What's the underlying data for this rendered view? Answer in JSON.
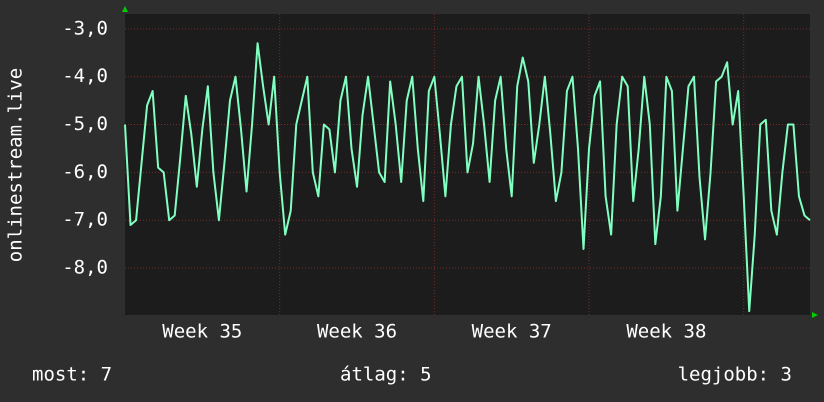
{
  "chart_data": {
    "type": "line",
    "ylabel": "onlinestream.live",
    "x": [
      0,
      0.25,
      0.5,
      0.75,
      1,
      1.25,
      1.5,
      1.75,
      2,
      2.25,
      2.5,
      2.75,
      3,
      3.25,
      3.5,
      3.75,
      4,
      4.25,
      4.5,
      4.75,
      5,
      5.25,
      5.5,
      5.75,
      6,
      6.25,
      6.5,
      6.75,
      7,
      7.25,
      7.5,
      7.75,
      8,
      8.25,
      8.5,
      8.75,
      9,
      9.25,
      9.5,
      9.75,
      10,
      10.25,
      10.5,
      10.75,
      11,
      11.25,
      11.5,
      11.75,
      12,
      12.25,
      12.5,
      12.75,
      13,
      13.25,
      13.5,
      13.75,
      14,
      14.25,
      14.5,
      14.75,
      15,
      15.25,
      15.5,
      15.75,
      16,
      16.25,
      16.5,
      16.75,
      17,
      17.25,
      17.5,
      17.75,
      18,
      18.25,
      18.5,
      18.75,
      19,
      19.25,
      19.5,
      19.75,
      20,
      20.25,
      20.5,
      20.75,
      21,
      21.25,
      21.5,
      21.75,
      22,
      22.25,
      22.5,
      22.75,
      23,
      23.25,
      23.5,
      23.75,
      24,
      24.25,
      24.5,
      24.75,
      25,
      25.25,
      25.5,
      25.75,
      26,
      26.25,
      26.5,
      26.75,
      27,
      27.25,
      27.5,
      27.75,
      28,
      28.25,
      28.5,
      28.75,
      29,
      29.25,
      29.5,
      29.75,
      30,
      30.25,
      30.5,
      30.75,
      31
    ],
    "series": [
      {
        "color": "#80ffc0",
        "values": [
          -5.0,
          -7.1,
          -7.0,
          -5.8,
          -4.6,
          -4.3,
          -5.9,
          -6.0,
          -7.0,
          -6.9,
          -5.7,
          -4.4,
          -5.2,
          -6.3,
          -5.1,
          -4.2,
          -6.0,
          -7.0,
          -5.8,
          -4.5,
          -4.0,
          -5.1,
          -6.4,
          -5.0,
          -3.3,
          -4.2,
          -5.0,
          -4.0,
          -6.0,
          -7.3,
          -6.8,
          -5.0,
          -4.5,
          -4.0,
          -6.0,
          -6.5,
          -5.0,
          -5.1,
          -6.0,
          -4.5,
          -4.0,
          -5.5,
          -6.3,
          -4.8,
          -4.0,
          -5.0,
          -6.0,
          -6.2,
          -4.1,
          -5.0,
          -6.2,
          -4.5,
          -4.0,
          -5.5,
          -6.6,
          -4.3,
          -4.0,
          -5.2,
          -6.5,
          -5.0,
          -4.2,
          -4.0,
          -6.0,
          -5.4,
          -4.0,
          -5.0,
          -6.2,
          -4.5,
          -4.0,
          -5.5,
          -6.5,
          -4.2,
          -3.6,
          -4.1,
          -5.8,
          -5.0,
          -4.0,
          -5.2,
          -6.6,
          -6.0,
          -4.3,
          -4.0,
          -5.5,
          -7.6,
          -5.5,
          -4.4,
          -4.1,
          -6.5,
          -7.3,
          -5.0,
          -4.0,
          -4.2,
          -6.6,
          -5.5,
          -4.0,
          -5.0,
          -7.5,
          -6.5,
          -4.0,
          -4.3,
          -6.8,
          -5.5,
          -4.2,
          -4.0,
          -6.1,
          -7.4,
          -6.0,
          -4.1,
          -4.0,
          -3.7,
          -5.0,
          -4.3,
          -6.5,
          -8.9,
          -7.3,
          -5.0,
          -4.9,
          -6.8,
          -7.3,
          -6.0,
          -5.0,
          -5.0,
          -6.5,
          -6.9,
          -7.0
        ]
      }
    ],
    "xlim": [
      0,
      31
    ],
    "xticks": [
      {
        "value": 3.5,
        "label": "Week 35"
      },
      {
        "value": 10.5,
        "label": "Week 36"
      },
      {
        "value": 17.5,
        "label": "Week 37"
      },
      {
        "value": 24.5,
        "label": "Week 38"
      }
    ],
    "xgrid": [
      7,
      14,
      21,
      28
    ],
    "ylim": [
      -8.98,
      -2.69
    ],
    "yticks": [
      {
        "value": -3,
        "label": "-3,0"
      },
      {
        "value": -4,
        "label": "-4,0"
      },
      {
        "value": -5,
        "label": "-5,0"
      },
      {
        "value": -6,
        "label": "-6,0"
      },
      {
        "value": -7,
        "label": "-7,0"
      },
      {
        "value": -8,
        "label": "-8,0"
      }
    ],
    "grid": true,
    "footer": {
      "current": "most: 7",
      "average": "átlag: 5",
      "best": "legjobb: 3"
    }
  }
}
